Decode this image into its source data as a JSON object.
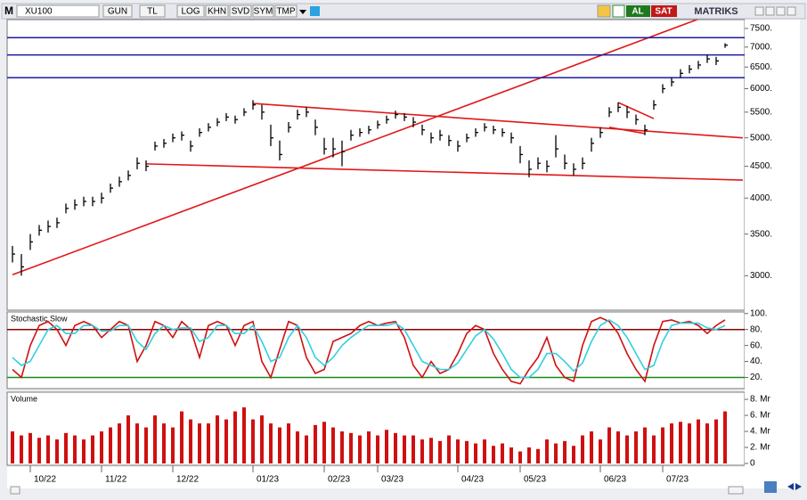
{
  "toolbar": {
    "logo": "M",
    "symbol": "XU100",
    "buttons": [
      "GUN",
      "TL",
      "LOG",
      "KHN",
      "SVD",
      "SYM",
      "TMP"
    ],
    "buy": "AL",
    "sell": "SAT",
    "brand": "MATRIKS"
  },
  "chart_data": [
    {
      "type": "ohlc",
      "log": true,
      "color": "#000000",
      "high": [
        3350,
        3250,
        3500,
        3620,
        3680,
        3720,
        3920,
        3980,
        4020,
        4020,
        4080,
        4220,
        4330,
        4430,
        4650,
        4600,
        4930,
        4980,
        5080,
        5120,
        4950,
        5180,
        5280,
        5380,
        5480,
        5430,
        5580,
        5750,
        5650,
        5250,
        4950,
        5300,
        5550,
        5600,
        5350,
        5000,
        5000,
        4950,
        5150,
        5180,
        5230,
        5330,
        5430,
        5530,
        5480,
        5400,
        5250,
        5100,
        5150,
        5050,
        4950,
        5080,
        5180,
        5280,
        5230,
        5180,
        5100,
        4850,
        4600,
        4650,
        4600,
        5050,
        4700,
        4550,
        4650,
        5000,
        5200,
        5600,
        5700,
        5620,
        5450,
        5250,
        5750,
        6100,
        6250,
        6450,
        6550,
        6650,
        6800,
        6750,
        7100
      ],
      "low": [
        3150,
        3000,
        3300,
        3480,
        3520,
        3580,
        3780,
        3830,
        3880,
        3880,
        3920,
        4080,
        4170,
        4270,
        4450,
        4420,
        4770,
        4820,
        4920,
        4950,
        4750,
        5020,
        5120,
        5220,
        5320,
        5270,
        5420,
        5550,
        5350,
        4850,
        4600,
        5100,
        5350,
        5400,
        5050,
        4700,
        4650,
        4500,
        4950,
        5020,
        5070,
        5170,
        5270,
        5370,
        5320,
        5200,
        5050,
        4900,
        4950,
        4850,
        4750,
        4920,
        5020,
        5120,
        5070,
        5020,
        4900,
        4550,
        4320,
        4450,
        4400,
        4650,
        4450,
        4350,
        4450,
        4750,
        5000,
        5400,
        5500,
        5380,
        5250,
        5050,
        5550,
        5900,
        6050,
        6250,
        6350,
        6450,
        6600,
        6550,
        6980
      ],
      "close": [
        3250,
        3100,
        3400,
        3550,
        3600,
        3650,
        3850,
        3900,
        3950,
        3950,
        4000,
        4150,
        4250,
        4350,
        4550,
        4500,
        4850,
        4900,
        5000,
        5050,
        4850,
        5100,
        5200,
        5300,
        5400,
        5350,
        5500,
        5650,
        5500,
        5000,
        4700,
        5200,
        5450,
        5500,
        5200,
        4800,
        4800,
        4750,
        5050,
        5100,
        5150,
        5250,
        5350,
        5450,
        5400,
        5300,
        5150,
        5000,
        5050,
        4950,
        4850,
        5000,
        5100,
        5200,
        5150,
        5100,
        5000,
        4700,
        4450,
        4550,
        4500,
        4800,
        4550,
        4450,
        4550,
        4900,
        5100,
        5500,
        5600,
        5500,
        5350,
        5150,
        5650,
        6000,
        6150,
        6350,
        6450,
        6550,
        6700,
        6650,
        7050
      ],
      "ylim": [
        2640,
        7750
      ],
      "yticks": [
        {
          "value": 3000,
          "label": "3000."
        },
        {
          "value": 3500,
          "label": "3500."
        },
        {
          "value": 4000,
          "label": "4000."
        },
        {
          "value": 4500,
          "label": "4500."
        },
        {
          "value": 5000,
          "label": "5000."
        },
        {
          "value": 5500,
          "label": "5500."
        },
        {
          "value": 6000,
          "label": "6000."
        },
        {
          "value": 6500,
          "label": "6500."
        },
        {
          "value": 7000,
          "label": "7000."
        },
        {
          "value": 7500,
          "label": "7500."
        }
      ],
      "hlines": {
        "values": [
          7250,
          6800,
          6250
        ],
        "color": "#1a1aa0"
      },
      "lines": [
        {
          "x": [
            0,
            78
          ],
          "y": [
            3010,
            7860
          ],
          "color": "#e01818"
        },
        {
          "x": [
            27,
            82
          ],
          "y": [
            5680,
            5000
          ],
          "color": "#e01818"
        },
        {
          "x": [
            15,
            82
          ],
          "y": [
            4540,
            4275
          ],
          "color": "#e01818"
        },
        {
          "x": [
            68,
            72
          ],
          "y": [
            5700,
            5370
          ],
          "color": "#e01818"
        },
        {
          "x": [
            67,
            71
          ],
          "y": [
            5200,
            5080
          ],
          "color": "#e01818"
        }
      ]
    },
    {
      "type": "line",
      "title": "Stochastic Slow",
      "series": [
        {
          "color": "#d01010",
          "values": [
            30,
            20,
            60,
            85,
            90,
            80,
            60,
            85,
            90,
            85,
            70,
            80,
            90,
            85,
            40,
            60,
            90,
            85,
            70,
            90,
            80,
            45,
            85,
            90,
            85,
            60,
            85,
            90,
            40,
            20,
            55,
            90,
            85,
            45,
            25,
            30,
            65,
            70,
            75,
            85,
            90,
            85,
            88,
            90,
            70,
            35,
            20,
            40,
            25,
            30,
            50,
            75,
            85,
            80,
            50,
            30,
            15,
            12,
            30,
            45,
            70,
            35,
            20,
            15,
            60,
            90,
            95,
            90,
            75,
            50,
            30,
            15,
            60,
            90,
            92,
            88,
            90,
            85,
            75,
            85,
            92
          ]
        },
        {
          "color": "#30d0e0",
          "values": [
            45,
            35,
            40,
            60,
            80,
            85,
            75,
            75,
            85,
            85,
            78,
            78,
            85,
            85,
            65,
            55,
            75,
            85,
            80,
            82,
            82,
            65,
            70,
            85,
            85,
            75,
            75,
            85,
            65,
            40,
            45,
            70,
            85,
            70,
            45,
            35,
            45,
            60,
            70,
            78,
            85,
            85,
            85,
            88,
            80,
            60,
            40,
            35,
            30,
            30,
            38,
            55,
            72,
            80,
            68,
            50,
            30,
            20,
            20,
            30,
            50,
            50,
            40,
            28,
            38,
            65,
            85,
            92,
            85,
            70,
            50,
            30,
            35,
            65,
            85,
            88,
            88,
            88,
            82,
            80,
            85
          ]
        }
      ],
      "ylim": [
        6,
        102
      ],
      "yticks": [
        {
          "value": 20,
          "label": "20."
        },
        {
          "value": 40,
          "label": "40."
        },
        {
          "value": 60,
          "label": "60."
        },
        {
          "value": 80,
          "label": "80."
        },
        {
          "value": 100,
          "label": "100."
        }
      ],
      "levels": [
        {
          "value": 80,
          "color": "#8b0000"
        },
        {
          "value": 20,
          "color": "#1a8a1a"
        }
      ]
    },
    {
      "type": "bar",
      "title": "Volume",
      "color": "#d01010",
      "values": [
        4,
        3.5,
        3.8,
        3.2,
        3.5,
        3,
        3.8,
        3.5,
        3,
        3.5,
        4,
        4.5,
        5,
        6,
        5,
        4.5,
        6,
        5,
        4.5,
        6.5,
        5.5,
        5,
        5,
        6,
        5.5,
        6.5,
        7,
        5.5,
        6,
        5,
        4.5,
        5,
        4,
        3.5,
        4.8,
        5.2,
        4.5,
        4,
        3.8,
        3.5,
        4,
        3.5,
        4.2,
        3.8,
        3.5,
        3.5,
        3,
        3.2,
        2.8,
        3.5,
        3,
        2.8,
        2.5,
        3,
        2.2,
        2.5,
        2,
        1.5,
        2,
        1.8,
        3,
        2.5,
        2.8,
        2.2,
        3.5,
        4,
        3,
        4.5,
        4,
        3.5,
        4,
        4.5,
        3.5,
        4.5,
        5,
        5.2,
        5,
        5.5,
        5,
        5.5,
        6.5
      ],
      "ylim": [
        0,
        8.9
      ],
      "yticks": [
        0,
        {
          "value": 2,
          "label": "2. Mr"
        },
        {
          "value": 4,
          "label": "4. Mr"
        },
        {
          "value": 6,
          "label": "6. Mr"
        },
        {
          "value": 8,
          "label": "8. Mr"
        }
      ],
      "xticks": [
        {
          "value": 2,
          "label": "10/22"
        },
        {
          "value": 10,
          "label": "11/22"
        },
        {
          "value": 18,
          "label": "12/22"
        },
        {
          "value": 27,
          "label": "01/23"
        },
        {
          "value": 35,
          "label": "02/23"
        },
        {
          "value": 41,
          "label": "03/23"
        },
        {
          "value": 50,
          "label": "04/23"
        },
        {
          "value": 57,
          "label": "05/23"
        },
        {
          "value": 66,
          "label": "06/23"
        },
        {
          "value": 73,
          "label": "07/23"
        }
      ]
    }
  ]
}
